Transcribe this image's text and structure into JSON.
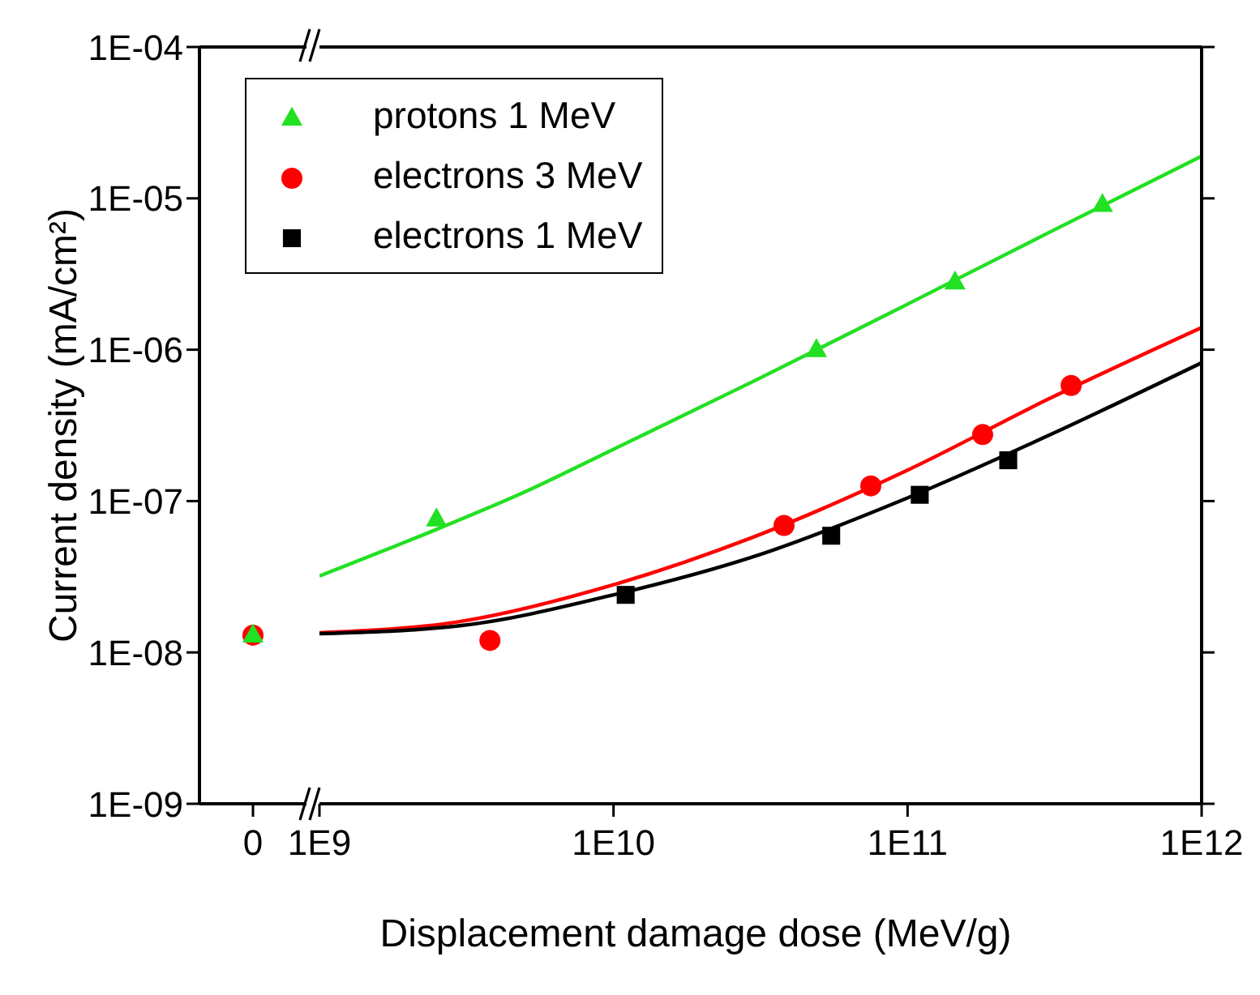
{
  "chart_data": [
    {
      "type": "scatter",
      "categories": [
        "0"
      ],
      "ylabel": "Current density (mA/cm²)",
      "log": "y",
      "ylim": [
        1e-09,
        0.0001
      ],
      "yticks": [
        {
          "value": 1e-09,
          "label": "1E-09"
        },
        {
          "value": 1e-08,
          "label": "1E-08"
        },
        {
          "value": 1e-07,
          "label": "1E-07"
        },
        {
          "value": 1e-06,
          "label": "1E-06"
        },
        {
          "value": 1e-05,
          "label": "1E-05"
        },
        {
          "value": 0.0001,
          "label": "1E-04"
        }
      ],
      "grid": false,
      "series": [
        {
          "type": "scatter",
          "marker": "circle",
          "color": "#ff0000",
          "values": [
            1.3e-08
          ]
        },
        {
          "type": "scatter",
          "marker": "triangle",
          "color": "#22e022",
          "values": [
            1.3e-08
          ]
        }
      ]
    },
    {
      "type": "scatter",
      "xlabel": "Displacement damage dose (MeV/g)",
      "log": "xy",
      "xlim": [
        1000000000.0,
        1000000000000.0
      ],
      "xticks": [
        {
          "value": 1000000000.0,
          "label": "1E9"
        },
        {
          "value": 10000000000.0,
          "label": "1E10"
        },
        {
          "value": 100000000000.0,
          "label": "1E11"
        },
        {
          "value": 1000000000000.0,
          "label": "1E12"
        }
      ],
      "ylim": [
        1e-09,
        0.0001
      ],
      "yticks": [
        1e-09,
        1e-08,
        1e-07,
        1e-06,
        1e-05,
        0.0001
      ],
      "tick_labels": "x",
      "grid": false,
      "legend": "top left",
      "line_style": "solid",
      "series": [
        {
          "name": "protons 1 MeV",
          "type": "scatter",
          "marker": "triangle",
          "color": "#22e022",
          "x": [
            2500000000.0,
            49000000000.0,
            145000000000.0,
            460000000000.0
          ],
          "values": [
            7.6e-08,
            1e-06,
            2.8e-06,
            9.1e-06
          ]
        },
        {
          "name": "electrons 3 MeV",
          "type": "scatter",
          "marker": "circle",
          "color": "#ff0000",
          "x": [
            3800000000.0,
            38000000000.0,
            75000000000.0,
            180000000000.0,
            360000000000.0
          ],
          "values": [
            1.2e-08,
            6.9e-08,
            1.26e-07,
            2.75e-07,
            5.8e-07
          ]
        },
        {
          "name": "electrons 1 MeV",
          "type": "scatter",
          "marker": "square",
          "color": "#000000",
          "x": [
            11000000000.0,
            55000000000.0,
            110000000000.0,
            220000000000.0
          ],
          "values": [
            2.4e-08,
            5.9e-08,
            1.1e-07,
            1.86e-07
          ]
        },
        {
          "type": "line",
          "marker": "none",
          "color": "#22e022",
          "x": [
            1000000000.0,
            2500000000.0,
            5000000000.0,
            10000000000.0,
            30000000000.0,
            100000000000.0,
            300000000000.0,
            1000000000000.0
          ],
          "values": [
            3.2e-08,
            6.5e-08,
            1.15e-07,
            2.2e-07,
            6.2e-07,
            2e-06,
            5.9e-06,
            1.9e-05
          ]
        },
        {
          "type": "line",
          "marker": "none",
          "color": "#ff0000",
          "x": [
            1000000000.0,
            3000000000.0,
            10000000000.0,
            30000000000.0,
            100000000000.0,
            300000000000.0,
            1000000000000.0
          ],
          "values": [
            1.35e-08,
            1.6e-08,
            2.8e-08,
            5.8e-08,
            1.6e-07,
            4.7e-07,
            1.4e-06
          ]
        },
        {
          "type": "line",
          "marker": "none",
          "color": "#000000",
          "x": [
            1000000000.0,
            3000000000.0,
            10000000000.0,
            30000000000.0,
            100000000000.0,
            300000000000.0,
            1000000000000.0
          ],
          "values": [
            1.33e-08,
            1.5e-08,
            2.4e-08,
            4.3e-08,
            1.05e-07,
            2.7e-07,
            8.2e-07
          ]
        }
      ]
    }
  ]
}
